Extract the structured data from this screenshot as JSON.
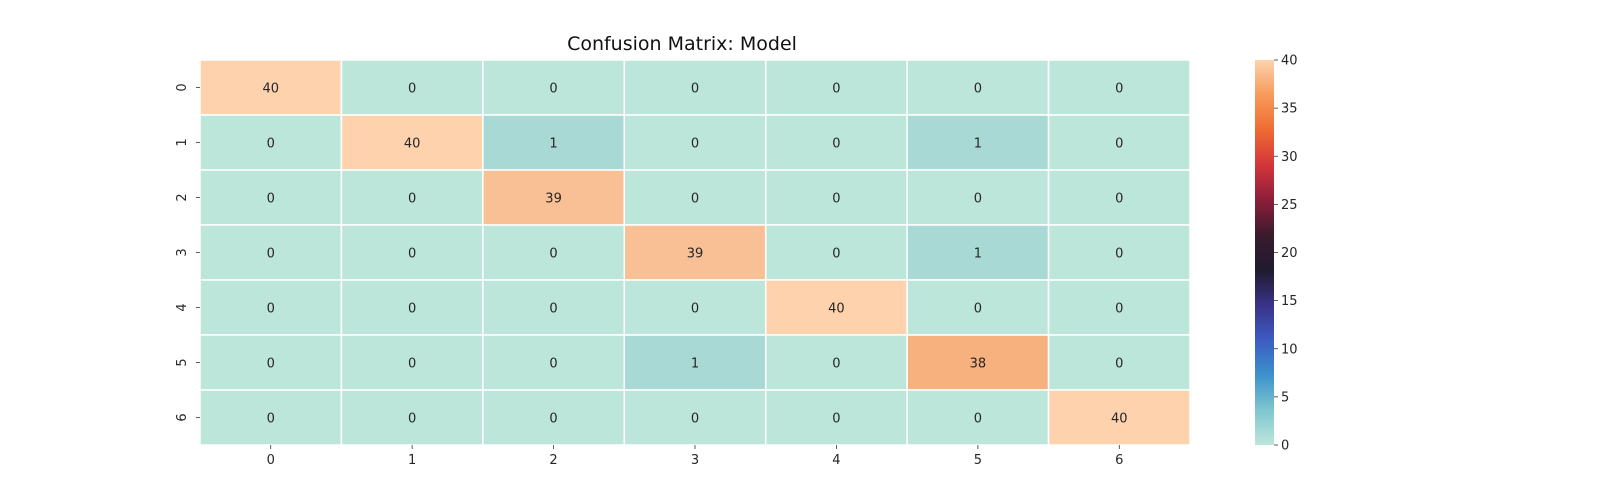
{
  "chart_data": {
    "type": "heatmap",
    "title": "Confusion Matrix: Model",
    "xlabel": "",
    "ylabel": "",
    "x_categories": [
      "0",
      "1",
      "2",
      "3",
      "4",
      "5",
      "6"
    ],
    "y_categories": [
      "0",
      "1",
      "2",
      "3",
      "4",
      "5",
      "6"
    ],
    "values": [
      [
        40,
        0,
        0,
        0,
        0,
        0,
        0
      ],
      [
        0,
        40,
        1,
        0,
        0,
        1,
        0
      ],
      [
        0,
        0,
        39,
        0,
        0,
        0,
        0
      ],
      [
        0,
        0,
        0,
        39,
        0,
        1,
        0
      ],
      [
        0,
        0,
        0,
        0,
        40,
        0,
        0
      ],
      [
        0,
        0,
        0,
        1,
        0,
        38,
        0
      ],
      [
        0,
        0,
        0,
        0,
        0,
        0,
        40
      ]
    ],
    "annotated": true,
    "colormap": "icefire",
    "vmin": 0,
    "vmax": 40,
    "colorbar": {
      "ticks": [
        0,
        5,
        10,
        15,
        20,
        25,
        30,
        35,
        40
      ],
      "tick_labels": [
        "0",
        "5",
        "10",
        "15",
        "20",
        "25",
        "30",
        "35",
        "40"
      ]
    },
    "cell_colors": {
      "0": "#bde6db",
      "1": "#a9d9d4",
      "38": "#f6b17f",
      "39": "#f9bf95",
      "40": "#fdd2ad"
    },
    "colorbar_gradient": [
      "#bde6db",
      "#7fc6cf",
      "#3c91cc",
      "#3c5cc2",
      "#3a3289",
      "#1f1b2e",
      "#3b1a2d",
      "#8c1f3a",
      "#d3363a",
      "#ee6b32",
      "#f69b5a",
      "#fdd2ad"
    ],
    "grid_line_color": "#ffffff"
  }
}
